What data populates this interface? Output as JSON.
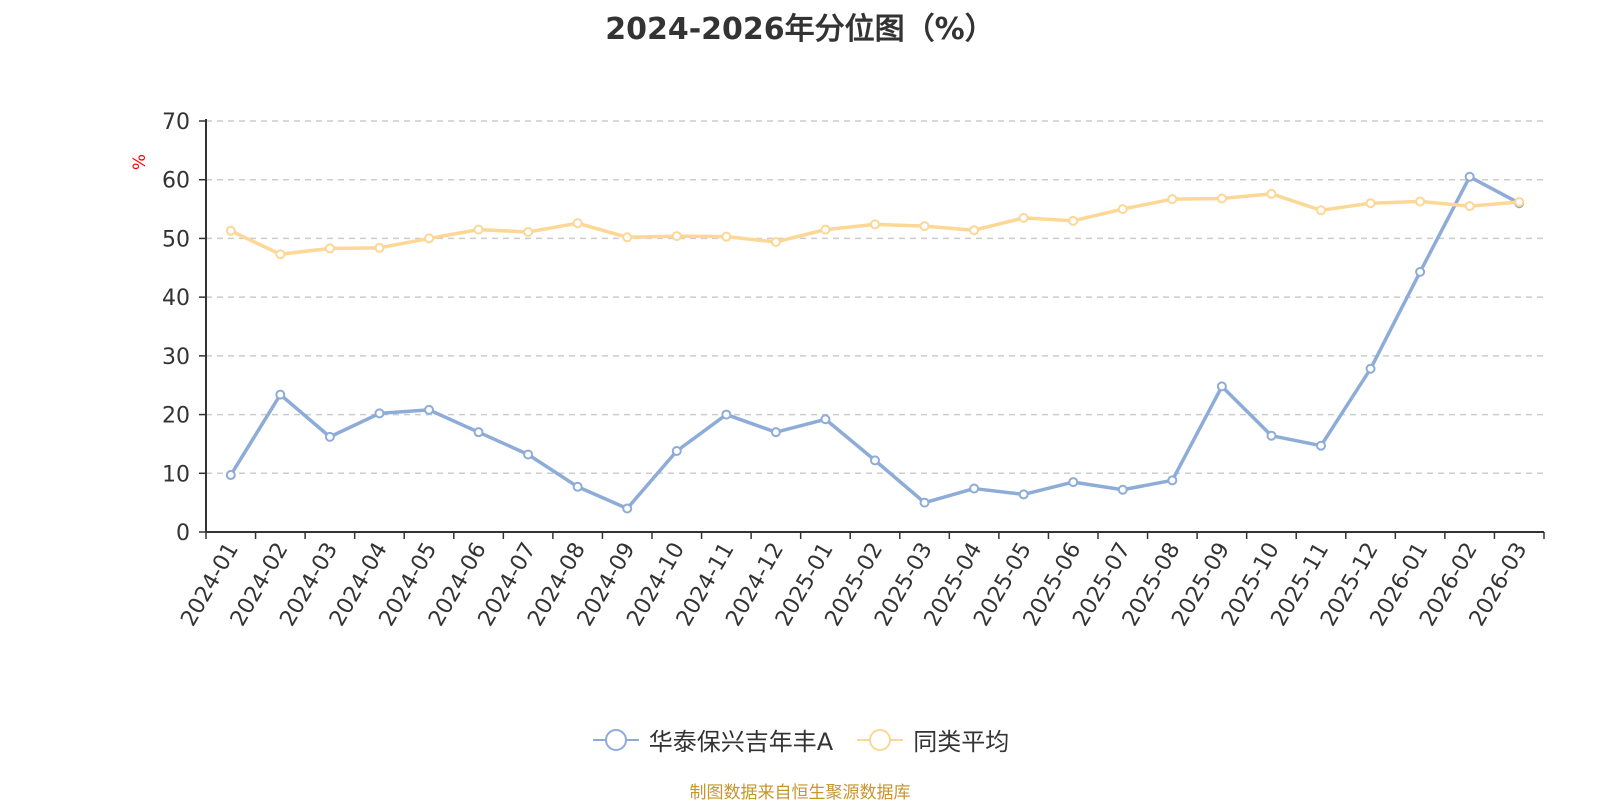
{
  "chart_data": {
    "type": "line",
    "title": "2024-2026年分位图（%）",
    "ylabel": "%",
    "xlabel": "",
    "ylim": [
      0,
      70
    ],
    "yticks": [
      0,
      10,
      20,
      30,
      40,
      50,
      60,
      70
    ],
    "grid": true,
    "legend_position": "bottom-center",
    "categories": [
      "2024-01",
      "2024-02",
      "2024-03",
      "2024-04",
      "2024-05",
      "2024-06",
      "2024-07",
      "2024-08",
      "2024-09",
      "2024-10",
      "2024-11",
      "2024-12",
      "2025-01",
      "2025-02",
      "2025-03",
      "2025-04",
      "2025-05",
      "2025-06",
      "2025-07",
      "2025-08",
      "2025-09",
      "2025-10",
      "2025-11",
      "2025-12",
      "2026-01",
      "2026-02",
      "2026-03"
    ],
    "series": [
      {
        "name": "华泰保兴吉年丰A",
        "color": "#8eacd8",
        "values": [
          9.7,
          23.4,
          16.2,
          20.2,
          20.8,
          17.0,
          13.2,
          7.7,
          4.0,
          13.8,
          20.0,
          17.0,
          19.2,
          12.2,
          5.0,
          7.4,
          6.4,
          8.5,
          7.2,
          8.8,
          24.8,
          16.4,
          14.7,
          27.8,
          44.3,
          60.5,
          56.0
        ]
      },
      {
        "name": "同类平均",
        "color": "#fcd796",
        "values": [
          51.3,
          47.3,
          48.3,
          48.4,
          50.0,
          51.5,
          51.1,
          52.6,
          50.2,
          50.4,
          50.3,
          49.4,
          51.5,
          52.4,
          52.1,
          51.4,
          53.5,
          53.0,
          55.0,
          56.7,
          56.8,
          57.6,
          54.8,
          56.0,
          56.3,
          55.5,
          56.2
        ]
      }
    ]
  },
  "source_note": "制图数据来自恒生聚源数据库"
}
